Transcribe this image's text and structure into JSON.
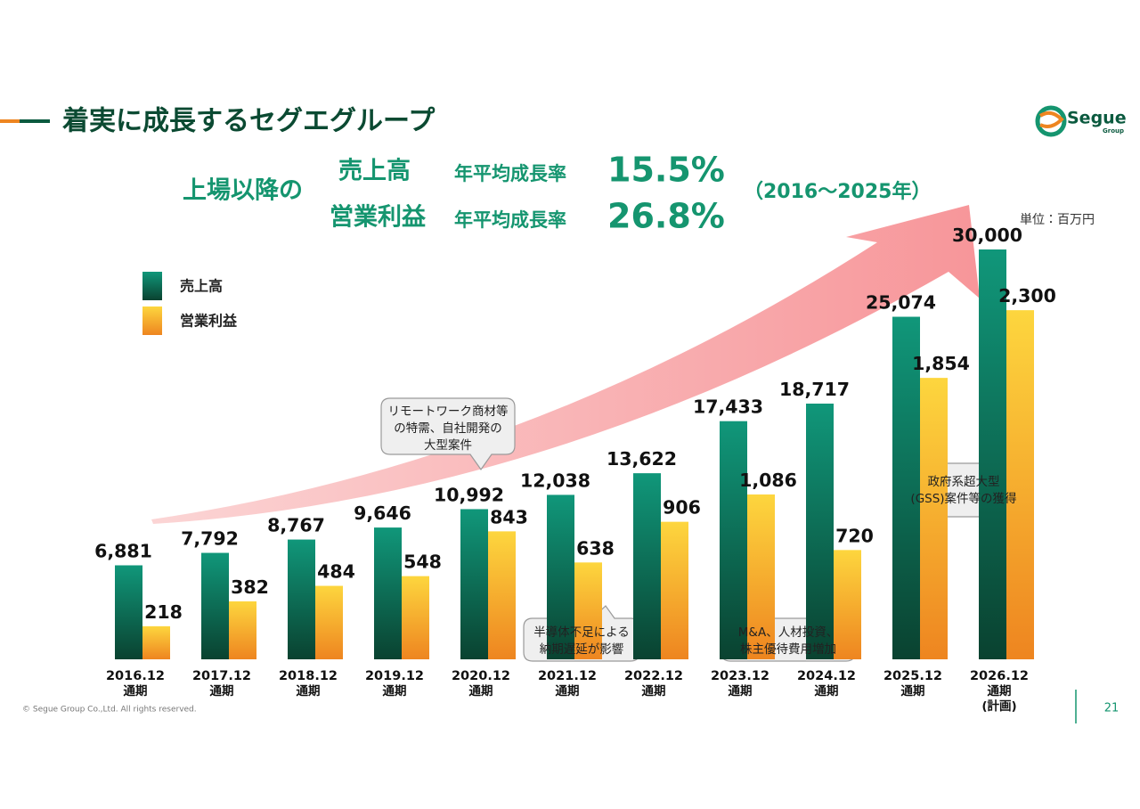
{
  "slide": {
    "title": "着実に成長するセグエグループ",
    "logo": {
      "name": "Segue",
      "sub": "Group"
    },
    "headline": {
      "lead": "上場以降の",
      "metric1": "売上高",
      "metric2": "営業利益",
      "rate_label": "年平均成長率",
      "rate1": "15.5%",
      "rate2": "26.8%",
      "period": "（2016～2025年）"
    },
    "unit": "単位：百万円",
    "callouts": [
      [
        "リモートワーク商材等",
        "の特需、自社開発の",
        "大型案件"
      ],
      [
        "半導体不足による",
        "納期遅延が影響"
      ],
      [
        "M&A、人材投資、",
        "株主優待費用増加"
      ],
      [
        "政府系超大型",
        "(GSS)案件等の獲得"
      ]
    ],
    "copyright": "© Segue Group Co.,Ltd. All rights reserved.",
    "page_number": "21"
  },
  "chart_data": {
    "type": "bar",
    "categories": [
      [
        "2016.12",
        "通期"
      ],
      [
        "2017.12",
        "通期"
      ],
      [
        "2018.12",
        "通期"
      ],
      [
        "2019.12",
        "通期"
      ],
      [
        "2020.12",
        "通期"
      ],
      [
        "2021.12",
        "通期"
      ],
      [
        "2022.12",
        "通期"
      ],
      [
        "2023.12",
        "通期"
      ],
      [
        "2024.12",
        "通期"
      ],
      [
        "2025.12",
        "通期"
      ],
      [
        "2026.12",
        "通期",
        "(計画)"
      ]
    ],
    "series": [
      {
        "name": "売上高",
        "colors": [
          "#10977a",
          "#0a4230"
        ],
        "values": [
          6881,
          7792,
          8767,
          9646,
          10992,
          12038,
          13622,
          17433,
          18717,
          25074,
          30000
        ],
        "value_labels": [
          "6,881",
          "7,792",
          "8,767",
          "9,646",
          "10,992",
          "12,038",
          "13,622",
          "17,433",
          "18,717",
          "25,074",
          "30,000"
        ]
      },
      {
        "name": "営業利益",
        "colors": [
          "#fdd63e",
          "#ee8520"
        ],
        "axis": "y2",
        "values": [
          218,
          382,
          484,
          548,
          843,
          638,
          906,
          1086,
          720,
          1854,
          2300
        ],
        "value_labels": [
          "218",
          "382",
          "484",
          "548",
          "843",
          "638",
          "906",
          "1,086",
          "720",
          "1,854",
          "2,300"
        ]
      }
    ],
    "ylim": [
      0,
      30000
    ],
    "y2lim": [
      0,
      2700
    ],
    "legend": "top-left"
  }
}
